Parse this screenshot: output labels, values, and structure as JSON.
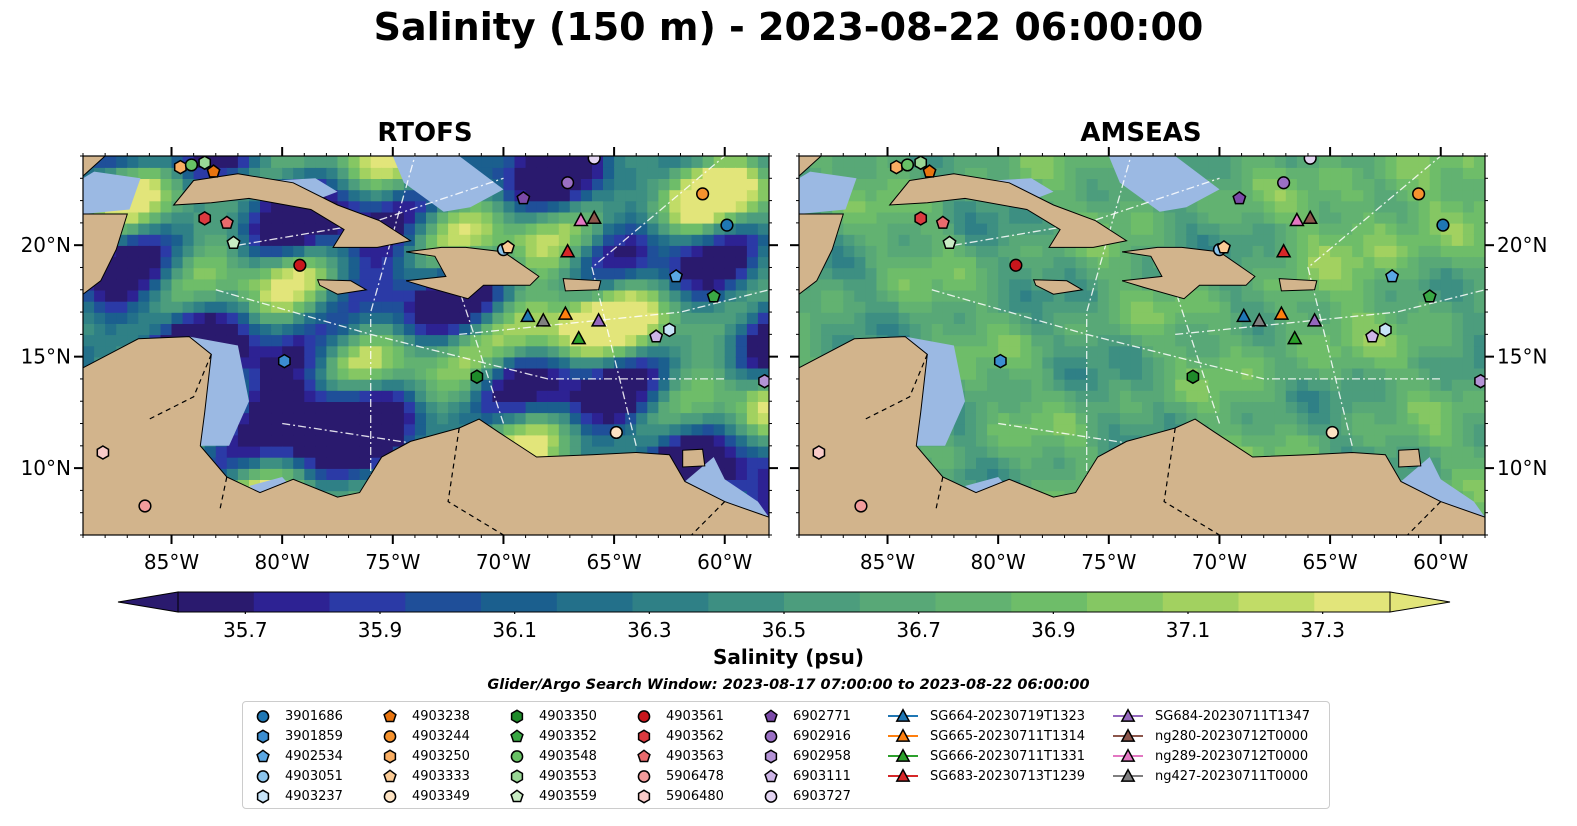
{
  "title": "Salinity (150 m) - 2023-08-22 06:00:00",
  "panels": [
    {
      "title": "RTOFS",
      "field": "rtofs"
    },
    {
      "title": "AMSEAS",
      "field": "amseas"
    }
  ],
  "map": {
    "lon_range": [
      -89,
      -58
    ],
    "lat_range": [
      7,
      24
    ],
    "lon_ticks": [
      {
        "value": -85,
        "label": "85°W"
      },
      {
        "value": -80,
        "label": "80°W"
      },
      {
        "value": -75,
        "label": "75°W"
      },
      {
        "value": -70,
        "label": "70°W"
      },
      {
        "value": -65,
        "label": "65°W"
      },
      {
        "value": -60,
        "label": "60°W"
      }
    ],
    "lat_ticks": [
      {
        "value": 20,
        "label": "20°N"
      },
      {
        "value": 15,
        "label": "15°N"
      },
      {
        "value": 10,
        "label": "10°N"
      }
    ],
    "colors": {
      "land": "#d2b48c",
      "shelf": "#9bb9e3",
      "contour": "#ffffff"
    }
  },
  "colorbar": {
    "label": "Salinity (psu)",
    "min": 35.6,
    "max": 37.4,
    "ticks": [
      "35.7",
      "35.9",
      "36.1",
      "36.3",
      "36.5",
      "36.7",
      "36.9",
      "37.1",
      "37.3"
    ],
    "colors": [
      "#2a1a6e",
      "#2d2293",
      "#2b3aa6",
      "#1f4f99",
      "#1b5f8e",
      "#23708a",
      "#2f8086",
      "#3d8f82",
      "#4c9d7d",
      "#58a877",
      "#62b271",
      "#6ebd69",
      "#85c763",
      "#a2d160",
      "#c1dc67",
      "#e2e57a"
    ]
  },
  "search_window": "Glider/Argo Search Window: 2023-08-17 07:00:00 to 2023-08-22 06:00:00",
  "legend": {
    "columns": [
      [
        {
          "label": "3901686",
          "marker": "circle",
          "color": "#1f77b4"
        },
        {
          "label": "3901859",
          "marker": "hexagon",
          "color": "#3b8dd0"
        },
        {
          "label": "4902534",
          "marker": "pentagon",
          "color": "#5aa7e4"
        },
        {
          "label": "4903051",
          "marker": "circle",
          "color": "#8cc4ec"
        },
        {
          "label": "4903237",
          "marker": "hexagon",
          "color": "#c7e3f7"
        }
      ],
      [
        {
          "label": "4903238",
          "marker": "pentagon",
          "color": "#e8740f"
        },
        {
          "label": "4903244",
          "marker": "circle",
          "color": "#f5922e"
        },
        {
          "label": "4903250",
          "marker": "hexagon",
          "color": "#f9ae63"
        },
        {
          "label": "4903333",
          "marker": "pentagon",
          "color": "#fbcb95"
        },
        {
          "label": "4903349",
          "marker": "circle",
          "color": "#fde3c3"
        }
      ],
      [
        {
          "label": "4903350",
          "marker": "hexagon",
          "color": "#1e8b2a"
        },
        {
          "label": "4903352",
          "marker": "pentagon",
          "color": "#3aa844"
        },
        {
          "label": "4903548",
          "marker": "circle",
          "color": "#68c265"
        },
        {
          "label": "4903553",
          "marker": "hexagon",
          "color": "#9ad796"
        },
        {
          "label": "4903559",
          "marker": "pentagon",
          "color": "#c9ecc4"
        }
      ],
      [
        {
          "label": "4903561",
          "marker": "circle",
          "color": "#c9161c"
        },
        {
          "label": "4903562",
          "marker": "hexagon",
          "color": "#db3a3f"
        },
        {
          "label": "4903563",
          "marker": "pentagon",
          "color": "#e96b6d"
        },
        {
          "label": "5906478",
          "marker": "circle",
          "color": "#f29c9c"
        },
        {
          "label": "5906480",
          "marker": "hexagon",
          "color": "#f9cbc9"
        }
      ],
      [
        {
          "label": "6902771",
          "marker": "pentagon",
          "color": "#7b4aa8"
        },
        {
          "label": "6902916",
          "marker": "circle",
          "color": "#9a6fc4"
        },
        {
          "label": "6902958",
          "marker": "hexagon",
          "color": "#b493d6"
        },
        {
          "label": "6903111",
          "marker": "pentagon",
          "color": "#cdb5e6"
        },
        {
          "label": "6903727",
          "marker": "circle",
          "color": "#e3d5f2"
        }
      ],
      [
        {
          "label": "SG664-20230719T1323",
          "marker": "triangle",
          "color": "#1f77b4"
        },
        {
          "label": "SG665-20230711T1314",
          "marker": "triangle",
          "color": "#ff7f0e"
        },
        {
          "label": "SG666-20230711T1331",
          "marker": "triangle",
          "color": "#2ca02c"
        },
        {
          "label": "SG683-20230713T1239",
          "marker": "triangle",
          "color": "#d62728"
        }
      ],
      [
        {
          "label": "SG684-20230711T1347",
          "marker": "triangle",
          "color": "#9467bd"
        },
        {
          "label": "ng280-20230712T0000",
          "marker": "triangle",
          "color": "#8c564b"
        },
        {
          "label": "ng289-20230712T0000",
          "marker": "triangle",
          "color": "#e377c2"
        },
        {
          "label": "ng427-20230711T0000",
          "marker": "triangle",
          "color": "#7f7f7f"
        }
      ]
    ]
  },
  "observations": [
    {
      "id": "3901686",
      "lon": -59.9,
      "lat": 20.9
    },
    {
      "id": "3901859",
      "lon": -79.9,
      "lat": 14.8
    },
    {
      "id": "4902534",
      "lon": -62.2,
      "lat": 18.6
    },
    {
      "id": "4903051",
      "lon": -70.0,
      "lat": 19.8
    },
    {
      "id": "4903237",
      "lon": -62.5,
      "lat": 16.2
    },
    {
      "id": "4903238",
      "lon": -83.1,
      "lat": 23.3
    },
    {
      "id": "4903244",
      "lon": -61.0,
      "lat": 22.3
    },
    {
      "id": "4903250",
      "lon": -84.6,
      "lat": 23.5
    },
    {
      "id": "4903333",
      "lon": -69.8,
      "lat": 19.9
    },
    {
      "id": "4903349",
      "lon": -64.9,
      "lat": 11.6
    },
    {
      "id": "4903350",
      "lon": -71.2,
      "lat": 14.1
    },
    {
      "id": "4903352",
      "lon": -60.5,
      "lat": 17.7
    },
    {
      "id": "4903548",
      "lon": -84.1,
      "lat": 23.6
    },
    {
      "id": "4903553",
      "lon": -83.5,
      "lat": 23.7
    },
    {
      "id": "4903559",
      "lon": -82.2,
      "lat": 20.1
    },
    {
      "id": "4903561",
      "lon": -79.2,
      "lat": 19.1
    },
    {
      "id": "4903562",
      "lon": -83.5,
      "lat": 21.2
    },
    {
      "id": "4903563",
      "lon": -82.5,
      "lat": 21.0
    },
    {
      "id": "5906478",
      "lon": -86.2,
      "lat": 8.3
    },
    {
      "id": "5906480",
      "lon": -88.1,
      "lat": 10.7
    },
    {
      "id": "6902771",
      "lon": -69.1,
      "lat": 22.1
    },
    {
      "id": "6902916",
      "lon": -67.1,
      "lat": 22.8
    },
    {
      "id": "6902958",
      "lon": -58.2,
      "lat": 13.9
    },
    {
      "id": "6903111",
      "lon": -63.1,
      "lat": 15.9
    },
    {
      "id": "6903727",
      "lon": -65.9,
      "lat": 23.9
    },
    {
      "id": "SG664-20230719T1323",
      "lon": -68.9,
      "lat": 16.8
    },
    {
      "id": "SG665-20230711T1314",
      "lon": -67.2,
      "lat": 16.9
    },
    {
      "id": "SG666-20230711T1331",
      "lon": -66.6,
      "lat": 15.8
    },
    {
      "id": "SG683-20230713T1239",
      "lon": -67.1,
      "lat": 19.7
    },
    {
      "id": "SG684-20230711T1347",
      "lon": -65.7,
      "lat": 16.6
    },
    {
      "id": "ng280-20230712T0000",
      "lon": -65.9,
      "lat": 21.2
    },
    {
      "id": "ng289-20230712T0000",
      "lon": -66.5,
      "lat": 21.1
    },
    {
      "id": "ng427-20230711T0000",
      "lon": -68.2,
      "lat": 16.6
    }
  ]
}
